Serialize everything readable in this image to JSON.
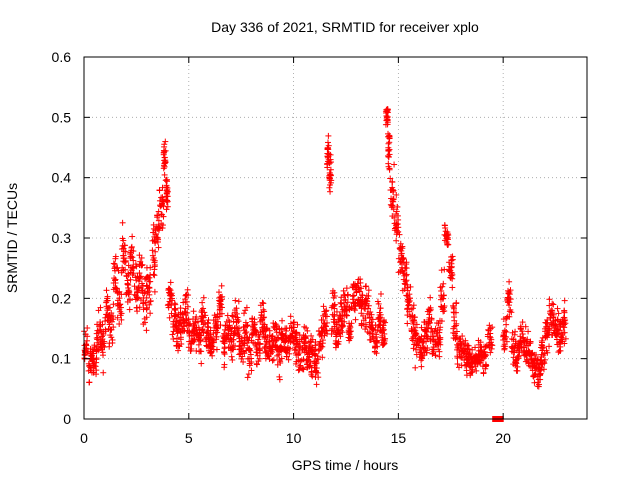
{
  "chart_data": {
    "type": "scatter",
    "title": "Day 336 of 2021, SRMTID for receiver xplo",
    "xlabel": "GPS time / hours",
    "ylabel": "SRMTID / TECUs",
    "xlim": [
      0,
      24
    ],
    "ylim": [
      0,
      0.6
    ],
    "xticks": [
      0,
      5,
      10,
      15,
      20
    ],
    "yticks": [
      0,
      0.1,
      0.2,
      0.3,
      0.4,
      0.5,
      0.6
    ],
    "xtick_labels": [
      "0",
      "5",
      "10",
      "15",
      "20"
    ],
    "ytick_labels": [
      "0",
      "0.1",
      "0.2",
      "0.3",
      "0.4",
      "0.5",
      "0.6"
    ],
    "grid": true,
    "marker": "plus",
    "color": "#ff0000",
    "series": [
      {
        "name": "SRMTID",
        "x": [
          0.0,
          0.2,
          0.4,
          0.6,
          0.8,
          1.0,
          1.2,
          1.4,
          1.6,
          1.8,
          2.0,
          2.2,
          2.4,
          2.6,
          2.8,
          3.0,
          3.2,
          3.4,
          3.6,
          3.8,
          3.9,
          4.0,
          4.2,
          4.4,
          4.6,
          4.8,
          5.0,
          5.2,
          5.4,
          5.6,
          5.8,
          6.0,
          6.2,
          6.4,
          6.6,
          6.8,
          7.0,
          7.2,
          7.4,
          7.6,
          7.8,
          8.0,
          8.2,
          8.4,
          8.6,
          8.8,
          9.0,
          9.2,
          9.4,
          9.6,
          9.8,
          10.0,
          10.2,
          10.4,
          10.6,
          10.8,
          11.0,
          11.2,
          11.4,
          11.6,
          11.7,
          11.8,
          12.0,
          12.2,
          12.4,
          12.6,
          12.8,
          13.0,
          13.2,
          13.4,
          13.6,
          13.8,
          14.0,
          14.2,
          14.4,
          14.5,
          14.6,
          14.8,
          15.0,
          15.2,
          15.4,
          15.6,
          15.8,
          16.0,
          16.2,
          16.4,
          16.6,
          16.8,
          17.0,
          17.2,
          17.4,
          17.6,
          17.8,
          18.0,
          18.2,
          18.4,
          18.6,
          18.8,
          19.0,
          19.2,
          19.5,
          19.7,
          19.9,
          20.0,
          20.2,
          20.4,
          20.6,
          20.8,
          21.0,
          21.2,
          21.4,
          21.6,
          21.8,
          22.0,
          22.2,
          22.4,
          22.6,
          22.8
        ],
        "y": [
          0.12,
          0.09,
          0.1,
          0.14,
          0.12,
          0.18,
          0.15,
          0.24,
          0.2,
          0.27,
          0.22,
          0.26,
          0.21,
          0.23,
          0.19,
          0.22,
          0.27,
          0.31,
          0.35,
          0.43,
          0.38,
          0.2,
          0.17,
          0.15,
          0.16,
          0.18,
          0.14,
          0.15,
          0.13,
          0.17,
          0.14,
          0.13,
          0.15,
          0.19,
          0.12,
          0.14,
          0.13,
          0.16,
          0.12,
          0.14,
          0.11,
          0.15,
          0.12,
          0.16,
          0.13,
          0.12,
          0.14,
          0.11,
          0.13,
          0.12,
          0.15,
          0.13,
          0.11,
          0.12,
          0.1,
          0.11,
          0.09,
          0.13,
          0.16,
          0.44,
          0.4,
          0.18,
          0.15,
          0.17,
          0.19,
          0.16,
          0.2,
          0.21,
          0.18,
          0.19,
          0.15,
          0.13,
          0.16,
          0.14,
          0.5,
          0.44,
          0.38,
          0.33,
          0.27,
          0.24,
          0.19,
          0.15,
          0.13,
          0.12,
          0.14,
          0.16,
          0.13,
          0.14,
          0.2,
          0.3,
          0.25,
          0.16,
          0.12,
          0.11,
          0.1,
          0.09,
          0.1,
          0.11,
          0.1,
          0.13,
          0.0,
          0.0,
          0.0,
          0.14,
          0.2,
          0.12,
          0.11,
          0.13,
          0.12,
          0.1,
          0.09,
          0.08,
          0.11,
          0.14,
          0.17,
          0.15,
          0.14,
          0.16
        ],
        "spread": [
          0.04,
          0.05,
          0.05,
          0.05,
          0.06,
          0.06,
          0.06,
          0.06,
          0.06,
          0.06,
          0.05,
          0.06,
          0.06,
          0.06,
          0.06,
          0.06,
          0.07,
          0.05,
          0.05,
          0.04,
          0.05,
          0.05,
          0.05,
          0.05,
          0.05,
          0.05,
          0.05,
          0.05,
          0.05,
          0.05,
          0.05,
          0.05,
          0.05,
          0.05,
          0.05,
          0.05,
          0.05,
          0.05,
          0.05,
          0.05,
          0.05,
          0.05,
          0.05,
          0.05,
          0.05,
          0.05,
          0.05,
          0.05,
          0.05,
          0.05,
          0.05,
          0.05,
          0.05,
          0.05,
          0.05,
          0.05,
          0.05,
          0.05,
          0.06,
          0.04,
          0.05,
          0.06,
          0.05,
          0.05,
          0.05,
          0.05,
          0.05,
          0.05,
          0.05,
          0.05,
          0.05,
          0.05,
          0.05,
          0.05,
          0.03,
          0.05,
          0.06,
          0.05,
          0.06,
          0.06,
          0.06,
          0.05,
          0.05,
          0.04,
          0.05,
          0.05,
          0.05,
          0.05,
          0.06,
          0.04,
          0.05,
          0.05,
          0.04,
          0.04,
          0.04,
          0.03,
          0.03,
          0.04,
          0.04,
          0.05,
          0.0,
          0.0,
          0.0,
          0.05,
          0.05,
          0.05,
          0.04,
          0.04,
          0.04,
          0.04,
          0.04,
          0.04,
          0.05,
          0.05,
          0.05,
          0.05,
          0.05,
          0.05
        ],
        "points_per_x": 22
      }
    ]
  }
}
